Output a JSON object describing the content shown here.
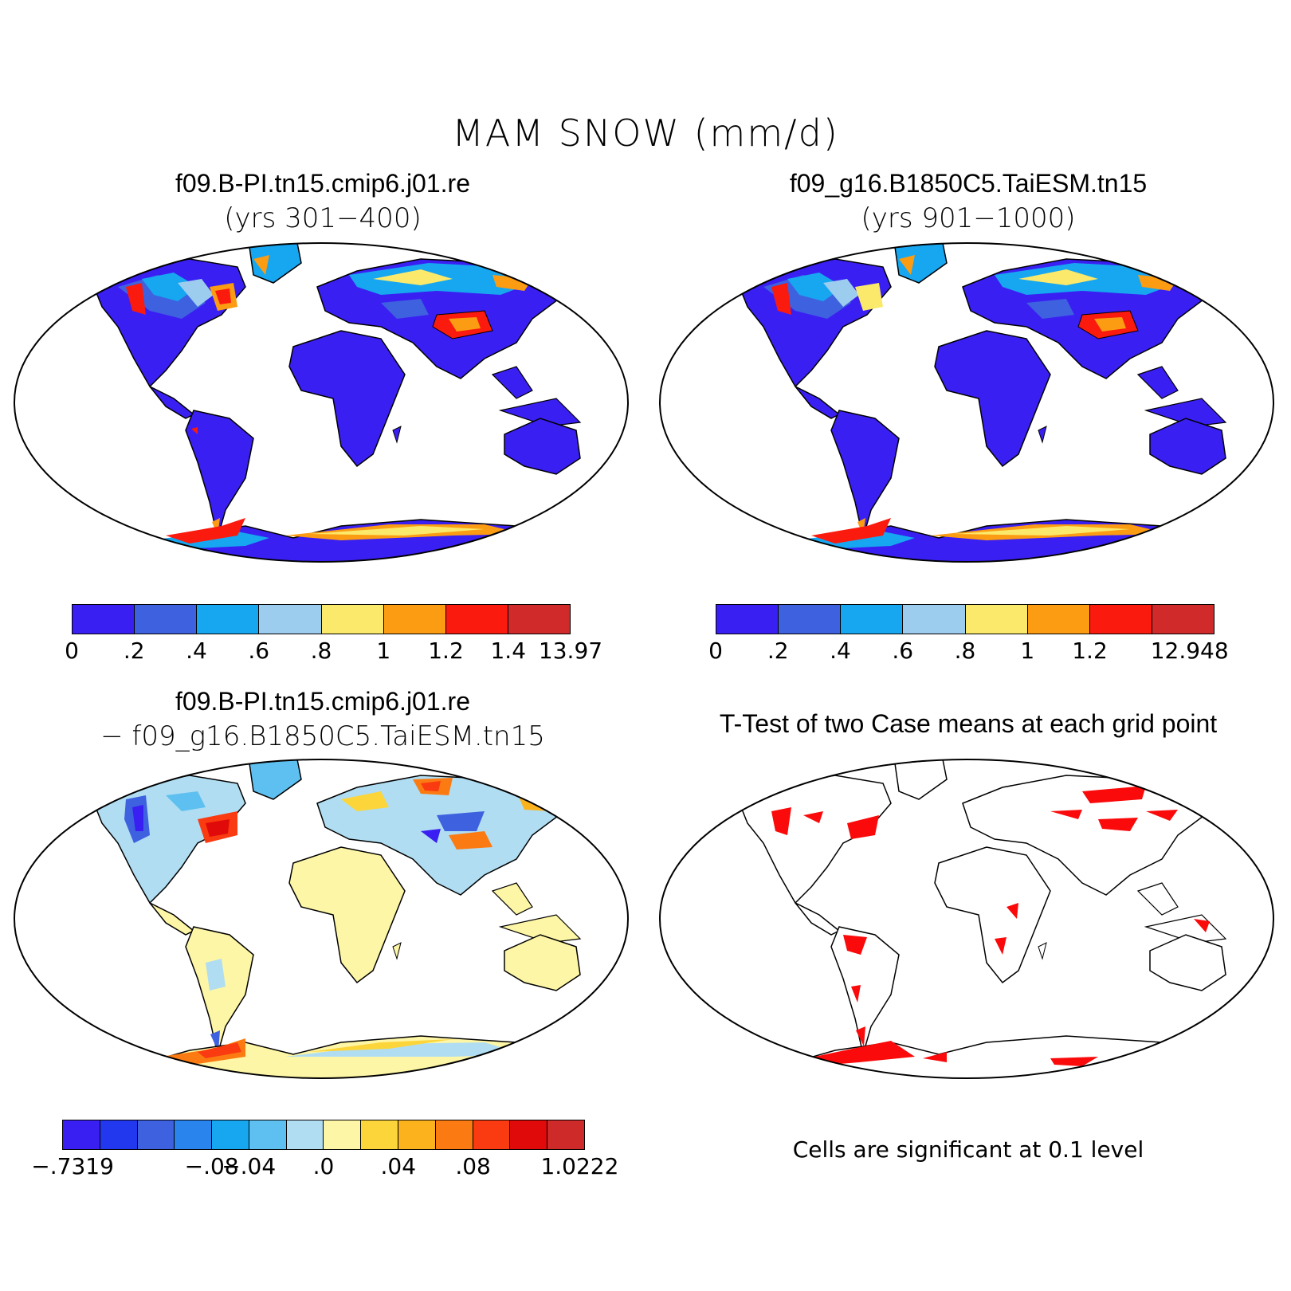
{
  "main_title": "MAM SNOW (mm/d)",
  "panels": {
    "top_left": {
      "title": "f09.B-PI.tn15.cmip6.j01.re",
      "subtitle": "(yrs 301−400)",
      "colorbar": {
        "colors": [
          "#3a1ff2",
          "#3e61e0",
          "#17a6f0",
          "#9ccdee",
          "#fbe96b",
          "#fb9c12",
          "#fa1a0e",
          "#d12a2a"
        ],
        "labels": [
          "0",
          ".2",
          ".4",
          ".6",
          ".8",
          "1",
          "1.2",
          "1.4",
          "13.97"
        ]
      }
    },
    "top_right": {
      "title": "f09_g16.B1850C5.TaiESM.tn15",
      "subtitle": "(yrs 901−1000)",
      "colorbar": {
        "colors": [
          "#3a1ff2",
          "#3e61e0",
          "#17a6f0",
          "#9ccdee",
          "#fbe96b",
          "#fb9c12",
          "#fa1a0e",
          "#d12a2a"
        ],
        "labels": [
          "0",
          ".2",
          ".4",
          ".6",
          ".8",
          "1",
          "1.2",
          "",
          "12.948"
        ]
      }
    },
    "bottom_left": {
      "title": "f09.B-PI.tn15.cmip6.j01.re",
      "subtitle": "− f09_g16.B1850C5.TaiESM.tn15",
      "colorbar": {
        "colors": [
          "#3a1ff2",
          "#2238ee",
          "#3e61e0",
          "#2a84ee",
          "#17a6f0",
          "#5ec0f0",
          "#b0ddf2",
          "#fdf6a6",
          "#fcd53a",
          "#fbb21c",
          "#fb7b12",
          "#fa3a10",
          "#e00a0a",
          "#cf2a2a"
        ],
        "labels": [
          "−.7319",
          "−.08",
          "−.04",
          ".0",
          ".04",
          ".08",
          "1.0222"
        ]
      }
    },
    "bottom_right": {
      "title": "T-Test of two Case means at each grid point",
      "note": "Cells are significant at 0.1 level"
    }
  }
}
